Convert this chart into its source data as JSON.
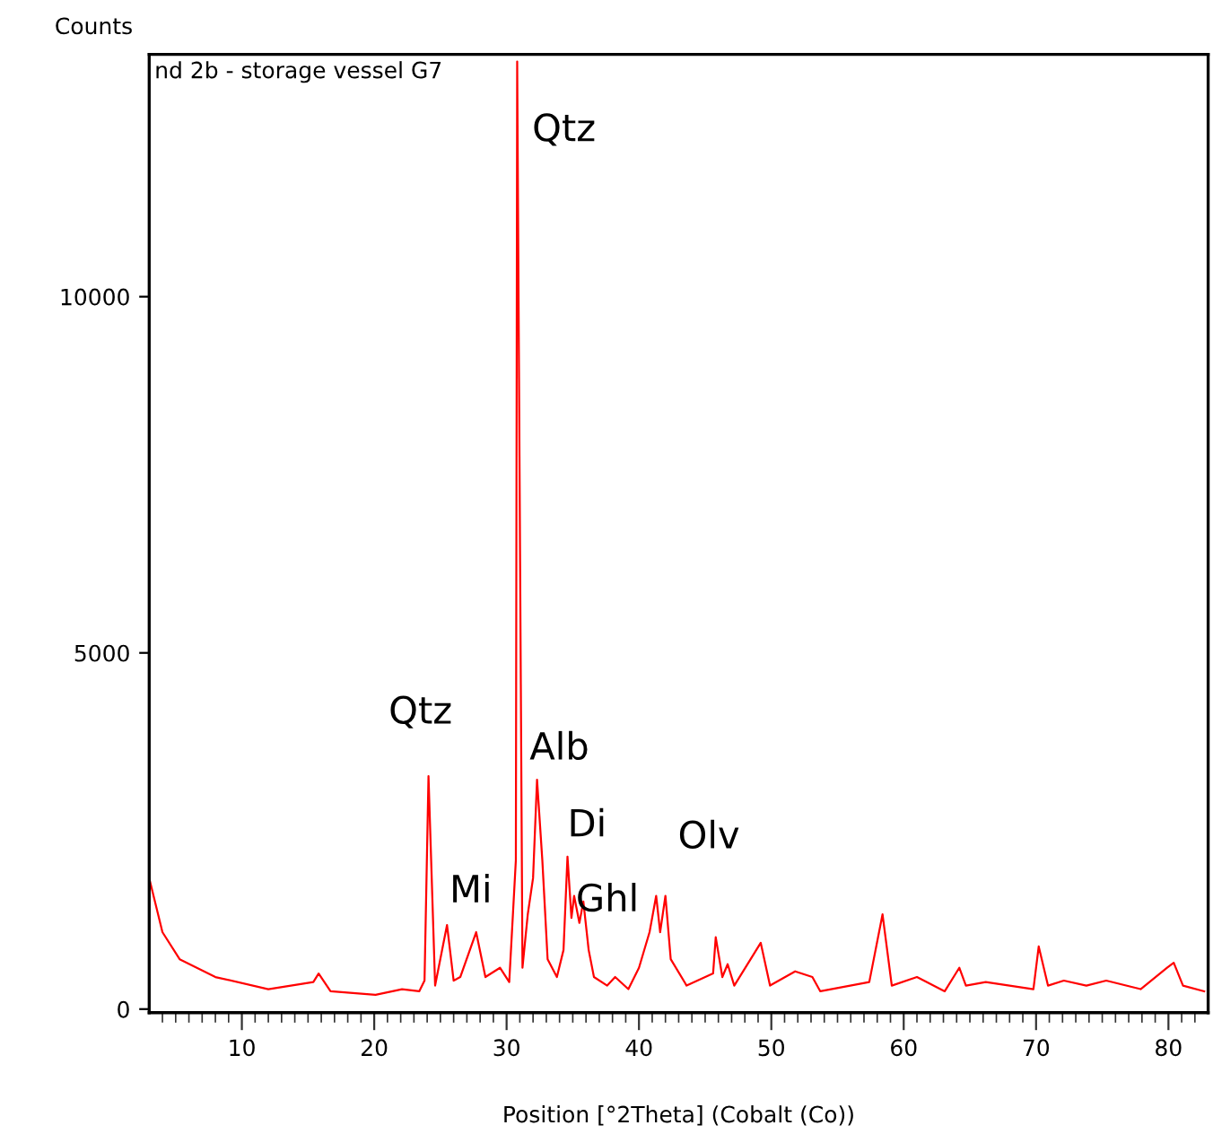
{
  "chart_data": {
    "type": "line",
    "title": "nd 2b - storage vessel G7",
    "xlabel": "Position [°2Theta] (Cobalt (Co))",
    "ylabel": "Counts",
    "x": [
      3.0,
      4.0,
      5.3,
      8.0,
      12.0,
      15.4,
      15.8,
      16.7,
      20.1,
      22.1,
      23.4,
      23.8,
      24.1,
      24.6,
      25.5,
      26.0,
      26.5,
      27.7,
      28.4,
      29.5,
      30.2,
      30.7,
      30.8,
      31.2,
      31.6,
      32.0,
      32.3,
      32.7,
      33.1,
      33.8,
      34.3,
      34.6,
      34.9,
      35.1,
      35.5,
      35.8,
      36.2,
      36.6,
      37.6,
      38.2,
      39.2,
      40.0,
      40.8,
      41.3,
      41.6,
      42.0,
      42.4,
      43.6,
      45.6,
      45.8,
      46.3,
      46.7,
      47.2,
      49.2,
      49.9,
      51.8,
      53.1,
      53.7,
      57.4,
      58.4,
      59.1,
      61.0,
      63.1,
      64.2,
      64.7,
      66.2,
      69.8,
      70.2,
      70.9,
      72.1,
      73.8,
      75.3,
      77.9,
      79.9,
      80.4,
      81.1,
      82.7
    ],
    "series": [
      {
        "color": "#ff0000",
        "values": [
          1840,
          1080,
          700,
          450,
          280,
          380,
          500,
          250,
          200,
          280,
          250,
          400,
          3270,
          330,
          1180,
          400,
          450,
          1080,
          450,
          580,
          380,
          2090,
          13300,
          580,
          1330,
          1840,
          3220,
          2090,
          700,
          450,
          830,
          2140,
          1280,
          1590,
          1210,
          1510,
          830,
          450,
          330,
          450,
          280,
          580,
          1080,
          1590,
          1080,
          1590,
          700,
          330,
          500,
          1010,
          450,
          630,
          330,
          930,
          330,
          530,
          450,
          250,
          380,
          1330,
          330,
          450,
          250,
          580,
          330,
          380,
          280,
          880,
          330,
          400,
          330,
          400,
          280,
          580,
          650,
          330,
          250
        ]
      }
    ],
    "annotations": [
      {
        "text": "Qtz",
        "x": 30.8,
        "y": 13300
      },
      {
        "text": "Qtz",
        "x": 24.1,
        "y": 3270
      },
      {
        "text": "Mi",
        "x": 25.5,
        "y": 1180
      },
      {
        "text": "Alb",
        "x": 32.3,
        "y": 3220
      },
      {
        "text": "Di",
        "x": 34.6,
        "y": 2140
      },
      {
        "text": "Ghl",
        "x": 35.8,
        "y": 1510
      },
      {
        "text": "Olv",
        "x": 42.0,
        "y": 1590
      }
    ],
    "xlim": [
      3.0,
      83.0
    ],
    "ylim": [
      -50,
      13400
    ],
    "xticks": [
      {
        "value": 4,
        "label": null
      },
      {
        "value": 5,
        "label": null
      },
      {
        "value": 6,
        "label": null
      },
      {
        "value": 7,
        "label": null
      },
      {
        "value": 8,
        "label": null
      },
      {
        "value": 9,
        "label": null
      },
      10,
      {
        "value": 11,
        "label": null
      },
      {
        "value": 12,
        "label": null
      },
      {
        "value": 13,
        "label": null
      },
      {
        "value": 14,
        "label": null
      },
      {
        "value": 15,
        "label": null
      },
      {
        "value": 16,
        "label": null
      },
      {
        "value": 17,
        "label": null
      },
      {
        "value": 18,
        "label": null
      },
      {
        "value": 19,
        "label": null
      },
      20,
      {
        "value": 21,
        "label": null
      },
      {
        "value": 22,
        "label": null
      },
      {
        "value": 23,
        "label": null
      },
      {
        "value": 24,
        "label": null
      },
      {
        "value": 25,
        "label": null
      },
      {
        "value": 26,
        "label": null
      },
      {
        "value": 27,
        "label": null
      },
      {
        "value": 28,
        "label": null
      },
      {
        "value": 29,
        "label": null
      },
      30,
      {
        "value": 31,
        "label": null
      },
      {
        "value": 32,
        "label": null
      },
      {
        "value": 33,
        "label": null
      },
      {
        "value": 34,
        "label": null
      },
      {
        "value": 35,
        "label": null
      },
      {
        "value": 36,
        "label": null
      },
      {
        "value": 37,
        "label": null
      },
      {
        "value": 38,
        "label": null
      },
      {
        "value": 39,
        "label": null
      },
      40,
      {
        "value": 41,
        "label": null
      },
      {
        "value": 42,
        "label": null
      },
      {
        "value": 43,
        "label": null
      },
      {
        "value": 44,
        "label": null
      },
      {
        "value": 45,
        "label": null
      },
      {
        "value": 46,
        "label": null
      },
      {
        "value": 47,
        "label": null
      },
      {
        "value": 48,
        "label": null
      },
      {
        "value": 49,
        "label": null
      },
      50,
      {
        "value": 51,
        "label": null
      },
      {
        "value": 52,
        "label": null
      },
      {
        "value": 53,
        "label": null
      },
      {
        "value": 54,
        "label": null
      },
      {
        "value": 55,
        "label": null
      },
      {
        "value": 56,
        "label": null
      },
      {
        "value": 57,
        "label": null
      },
      {
        "value": 58,
        "label": null
      },
      {
        "value": 59,
        "label": null
      },
      60,
      {
        "value": 61,
        "label": null
      },
      {
        "value": 62,
        "label": null
      },
      {
        "value": 63,
        "label": null
      },
      {
        "value": 64,
        "label": null
      },
      {
        "value": 65,
        "label": null
      },
      {
        "value": 66,
        "label": null
      },
      {
        "value": 67,
        "label": null
      },
      {
        "value": 68,
        "label": null
      },
      {
        "value": 69,
        "label": null
      },
      70,
      {
        "value": 71,
        "label": null
      },
      {
        "value": 72,
        "label": null
      },
      {
        "value": 73,
        "label": null
      },
      {
        "value": 74,
        "label": null
      },
      {
        "value": 75,
        "label": null
      },
      {
        "value": 76,
        "label": null
      },
      {
        "value": 77,
        "label": null
      },
      {
        "value": 78,
        "label": null
      },
      {
        "value": 79,
        "label": null
      },
      80,
      {
        "value": 81,
        "label": null
      },
      {
        "value": 82,
        "label": null
      }
    ],
    "yticks": [
      0,
      5000,
      10000
    ],
    "grid": false
  }
}
